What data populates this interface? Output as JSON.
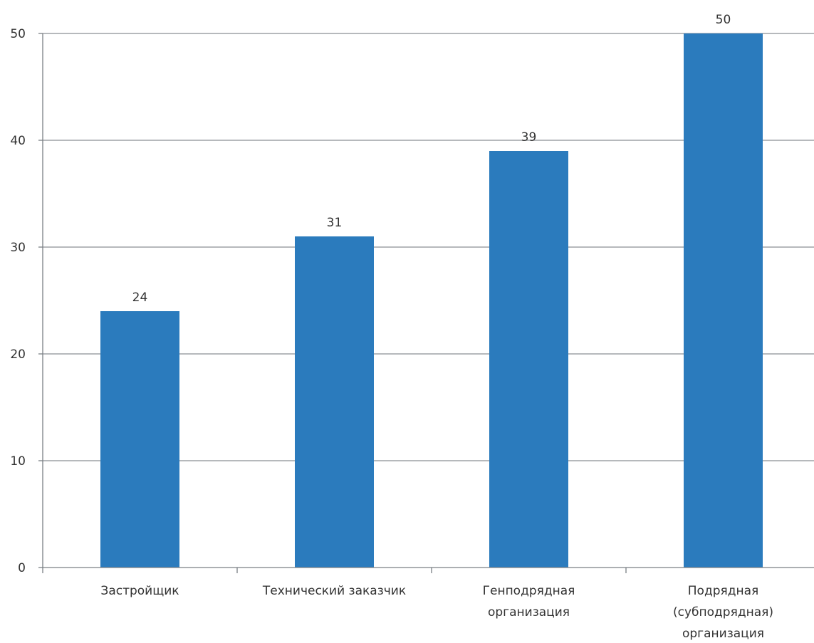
{
  "chart_data": {
    "type": "bar",
    "categories": [
      [
        "Застройщик"
      ],
      [
        "Технический заказчик"
      ],
      [
        "Генподрядная",
        "организация"
      ],
      [
        "Подрядная",
        "(субподрядная)",
        "организация"
      ]
    ],
    "values": [
      24,
      31,
      39,
      50
    ],
    "data_labels": [
      "24",
      "31",
      "39",
      "50"
    ],
    "y_ticks": [
      "0",
      "10",
      "20",
      "30",
      "40",
      "50"
    ],
    "ylim": [
      0,
      50
    ],
    "title": "",
    "xlabel": "",
    "ylabel": "",
    "grid": true,
    "legend": "none",
    "colors": {
      "bar": "#2b7bbd",
      "grid": "#8a8f94",
      "axis": "#7a7f84"
    }
  }
}
